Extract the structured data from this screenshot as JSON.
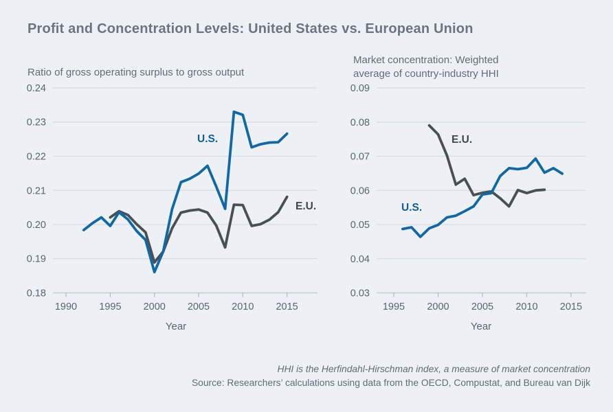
{
  "title": "Profit and Concentration Levels: United States vs. European Union",
  "colors": {
    "background": "#edf1f6",
    "gridline": "#d8dde2",
    "axis_line": "#c6ccd2",
    "us_line": "#1268a6",
    "eu_line": "#4a4f54"
  },
  "footer": {
    "note": "HHI is the Herfindahl-Hirschman index, a measure of market concentration",
    "source": "Source: Researchers’ calculations using data from the OECD, Compustat, and Bureau van Dijk"
  },
  "chart_data": [
    {
      "type": "line",
      "title": "Ratio of gross operating surplus to gross output",
      "xlabel": "Year",
      "ylim": [
        0.18,
        0.24
      ],
      "yticks": [
        0.24,
        0.23,
        0.22,
        0.21,
        0.2,
        0.19,
        0.18
      ],
      "xticks": [
        1990,
        1995,
        2000,
        2005,
        2010,
        2015
      ],
      "grid": true,
      "legend_position": "inline",
      "series": [
        {
          "name": "U.S.",
          "color": "#1268a6",
          "x": [
            1992,
            1993,
            1994,
            1995,
            1996,
            1997,
            1998,
            1999,
            2000,
            2001,
            2002,
            2003,
            2004,
            2005,
            2006,
            2007,
            2008,
            2009,
            2010,
            2011,
            2012,
            2013,
            2014,
            2015
          ],
          "values": [
            0.1984,
            0.2004,
            0.2021,
            0.1996,
            0.2036,
            0.2015,
            0.1981,
            0.1955,
            0.1861,
            0.1921,
            0.2045,
            0.2124,
            0.2134,
            0.2149,
            0.2172,
            0.2111,
            0.2046,
            0.233,
            0.2321,
            0.2226,
            0.2235,
            0.224,
            0.2241,
            0.2266
          ]
        },
        {
          "name": "E.U.",
          "color": "#4a4f54",
          "x": [
            1995,
            1996,
            1997,
            1998,
            1999,
            2000,
            2001,
            2002,
            2003,
            2004,
            2005,
            2006,
            2007,
            2008,
            2009,
            2010,
            2011,
            2012,
            2013,
            2014,
            2015
          ],
          "values": [
            0.2021,
            0.2039,
            0.2028,
            0.2001,
            0.1977,
            0.1889,
            0.1921,
            0.1989,
            0.2035,
            0.2041,
            0.2044,
            0.2035,
            0.1997,
            0.1933,
            0.2058,
            0.2057,
            0.1996,
            0.2001,
            0.2014,
            0.2036,
            0.2081
          ]
        }
      ]
    },
    {
      "type": "line",
      "title": "Market concentration: Weighted average of country-industry HHI",
      "title_lines": [
        "Market concentration: Weighted",
        "average of country-industry HHI"
      ],
      "xlabel": "Year",
      "ylim": [
        0.03,
        0.09
      ],
      "yticks": [
        0.09,
        0.08,
        0.07,
        0.06,
        0.05,
        0.04,
        0.03
      ],
      "xticks": [
        1995,
        2000,
        2005,
        2010,
        2015
      ],
      "grid": true,
      "legend_position": "inline",
      "series": [
        {
          "name": "U.S.",
          "color": "#1268a6",
          "x": [
            1996,
            1997,
            1998,
            1999,
            2000,
            2001,
            2002,
            2003,
            2004,
            2005,
            2006,
            2007,
            2008,
            2009,
            2010,
            2011,
            2012,
            2013,
            2014
          ],
          "values": [
            0.0487,
            0.0492,
            0.0464,
            0.0489,
            0.0499,
            0.0521,
            0.0526,
            0.0539,
            0.0553,
            0.0588,
            0.0592,
            0.0642,
            0.0665,
            0.0662,
            0.0666,
            0.0693,
            0.0652,
            0.0665,
            0.0649
          ]
        },
        {
          "name": "E.U.",
          "color": "#4a4f54",
          "x": [
            1999,
            2000,
            2001,
            2002,
            2003,
            2004,
            2005,
            2006,
            2007,
            2008,
            2009,
            2010,
            2011,
            2012
          ],
          "values": [
            0.079,
            0.0764,
            0.0702,
            0.0617,
            0.0634,
            0.0586,
            0.0593,
            0.0597,
            0.0577,
            0.0553,
            0.0601,
            0.0592,
            0.06,
            0.0602
          ]
        }
      ]
    }
  ]
}
